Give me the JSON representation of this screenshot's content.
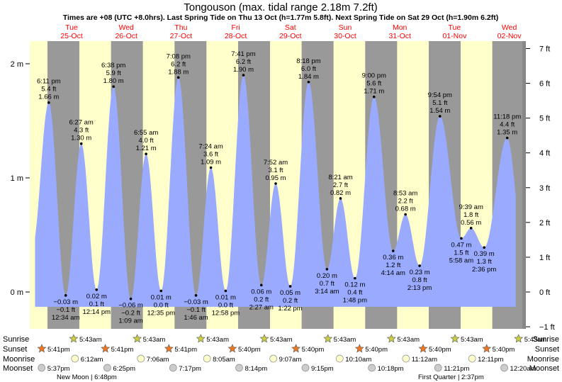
{
  "title": "Tongouson (max. tidal range 2.18m 7.2ft)",
  "subtitle": "Times are +08 (UTC +8.0hrs). Last Spring Tide on Thu 13 Oct (h=1.77m 5.8ft). Next Spring Tide on Sat 29 Oct (h=1.90m 6.2ft)",
  "colors": {
    "day": "#ffffcc",
    "night": "#999999",
    "tide": "#99aaff",
    "day_label": "#ff0000",
    "sun_marker": "#cccc44",
    "sunset_marker": "#ee7722",
    "moon_marker": "#ffffcc",
    "moonset_marker": "#cccccc"
  },
  "days": [
    {
      "dow": "Tue",
      "date": "25-Oct"
    },
    {
      "dow": "Wed",
      "date": "26-Oct"
    },
    {
      "dow": "Thu",
      "date": "27-Oct"
    },
    {
      "dow": "Fri",
      "date": "28-Oct"
    },
    {
      "dow": "Sat",
      "date": "29-Oct"
    },
    {
      "dow": "Sun",
      "date": "30-Oct"
    },
    {
      "dow": "Mon",
      "date": "31-Oct"
    },
    {
      "dow": "Tue",
      "date": "01-Nov"
    },
    {
      "dow": "Wed",
      "date": "02-Nov"
    }
  ],
  "row_labels": [
    "Sunrise",
    "Sunset",
    "Moonrise",
    "Moonset"
  ],
  "chart_data": {
    "type": "area",
    "x_unit": "hours from 25-Oct 00:00 (+08)",
    "x_range": [
      11,
      197
    ],
    "ylim_m": [
      -0.28,
      2.22
    ],
    "ylim_ft": [
      -1,
      7
    ],
    "left_ticks": [
      {
        "v": 0,
        "label": "0 m"
      },
      {
        "v": 1,
        "label": "1 m"
      },
      {
        "v": 2,
        "label": "2 m"
      }
    ],
    "right_ticks": [
      {
        "v": -1,
        "label": "−1 ft"
      },
      {
        "v": 0,
        "label": "0 ft"
      },
      {
        "v": 1,
        "label": "1 ft"
      },
      {
        "v": 2,
        "label": "2 ft"
      },
      {
        "v": 3,
        "label": "3 ft"
      },
      {
        "v": 4,
        "label": "4 ft"
      },
      {
        "v": 5,
        "label": "5 ft"
      },
      {
        "v": 6,
        "label": "6 ft"
      },
      {
        "v": 7,
        "label": "7 ft"
      }
    ],
    "tides": [
      {
        "t": 18.18,
        "h": 1.66,
        "kind": "high",
        "time": "6:11 pm",
        "ft": "5.4 ft",
        "m": "1.66 m"
      },
      {
        "t": 24.57,
        "h": -0.03,
        "kind": "low",
        "time": "12:34 am",
        "ft": "−0.1 ft",
        "m": "−0.03 m"
      },
      {
        "t": 30.45,
        "h": 1.3,
        "kind": "high",
        "time": "6:27 am",
        "ft": "4.3 ft",
        "m": "1.30 m"
      },
      {
        "t": 36.23,
        "h": 0.02,
        "kind": "low",
        "time": "12:14 pm",
        "ft": "0.1 ft",
        "m": "0.02 m"
      },
      {
        "t": 42.63,
        "h": 1.8,
        "kind": "high",
        "time": "6:38 pm",
        "ft": "5.9 ft",
        "m": "1.80 m"
      },
      {
        "t": 49.15,
        "h": -0.06,
        "kind": "low",
        "time": "1:09 am",
        "ft": "−0.2 ft",
        "m": "−0.06 m"
      },
      {
        "t": 54.92,
        "h": 1.21,
        "kind": "high",
        "time": "6:55 am",
        "ft": "4.0 ft",
        "m": "1.21 m"
      },
      {
        "t": 60.58,
        "h": 0.01,
        "kind": "low",
        "time": "12:35 pm",
        "ft": "0.0 ft",
        "m": "0.01 m"
      },
      {
        "t": 67.13,
        "h": 1.88,
        "kind": "high",
        "time": "7:08 pm",
        "ft": "6.2 ft",
        "m": "1.88 m"
      },
      {
        "t": 73.77,
        "h": -0.03,
        "kind": "low",
        "time": "1:46 am",
        "ft": "−0.1 ft",
        "m": "−0.03 m"
      },
      {
        "t": 79.4,
        "h": 1.09,
        "kind": "high",
        "time": "7:24 am",
        "ft": "3.6 ft",
        "m": "1.09 m"
      },
      {
        "t": 84.97,
        "h": 0.01,
        "kind": "low",
        "time": "12:58 pm",
        "ft": "0.0 ft",
        "m": "0.01 m"
      },
      {
        "t": 91.68,
        "h": 1.9,
        "kind": "high",
        "time": "7:41 pm",
        "ft": "6.2 ft",
        "m": "1.90 m"
      },
      {
        "t": 98.45,
        "h": 0.06,
        "kind": "low",
        "time": "2:27 am",
        "ft": "0.2 ft",
        "m": "0.06 m"
      },
      {
        "t": 103.87,
        "h": 0.95,
        "kind": "high",
        "time": "7:52 am",
        "ft": "3.1 ft",
        "m": "0.95 m"
      },
      {
        "t": 109.37,
        "h": 0.05,
        "kind": "low",
        "time": "1:22 pm",
        "ft": "0.2 ft",
        "m": "0.05 m"
      },
      {
        "t": 116.3,
        "h": 1.84,
        "kind": "high",
        "time": "8:18 pm",
        "ft": "6.0 ft",
        "m": "1.84 m"
      },
      {
        "t": 123.23,
        "h": 0.2,
        "kind": "low",
        "time": "3:14 am",
        "ft": "0.7 ft",
        "m": "0.20 m"
      },
      {
        "t": 128.35,
        "h": 0.82,
        "kind": "high",
        "time": "8:21 am",
        "ft": "2.7 ft",
        "m": "0.82 m"
      },
      {
        "t": 133.8,
        "h": 0.12,
        "kind": "low",
        "time": "1:48 pm",
        "ft": "0.4 ft",
        "m": "0.12 m"
      },
      {
        "t": 141.0,
        "h": 1.71,
        "kind": "high",
        "time": "9:00 pm",
        "ft": "5.6 ft",
        "m": "1.71 m"
      },
      {
        "t": 148.23,
        "h": 0.36,
        "kind": "low",
        "time": "4:14 am",
        "ft": "1.2 ft",
        "m": "0.36 m"
      },
      {
        "t": 152.88,
        "h": 0.68,
        "kind": "high",
        "time": "8:53 am",
        "ft": "2.2 ft",
        "m": "0.68 m"
      },
      {
        "t": 158.22,
        "h": 0.23,
        "kind": "low",
        "time": "2:13 pm",
        "ft": "0.8 ft",
        "m": "0.23 m"
      },
      {
        "t": 165.9,
        "h": 1.54,
        "kind": "high",
        "time": "9:54 pm",
        "ft": "5.1 ft",
        "m": "1.54 m"
      },
      {
        "t": 173.97,
        "h": 0.47,
        "kind": "low",
        "time": "5:58 am",
        "ft": "1.5 ft",
        "m": "0.47 m"
      },
      {
        "t": 177.65,
        "h": 0.56,
        "kind": "high",
        "time": "9:39 am",
        "ft": "1.8 ft",
        "m": "0.56 m"
      },
      {
        "t": 182.6,
        "h": 0.39,
        "kind": "low",
        "time": "2:36 pm",
        "ft": "1.3 ft",
        "m": "0.39 m"
      },
      {
        "t": 191.3,
        "h": 1.35,
        "kind": "high",
        "time": "11:18 pm",
        "ft": "4.4 ft",
        "m": "1.35 m"
      }
    ],
    "sunrise": [
      {
        "t": 29.72,
        "label": "5:43am"
      },
      {
        "t": 53.72,
        "label": "5:43am"
      },
      {
        "t": 77.72,
        "label": "5:43am"
      },
      {
        "t": 101.72,
        "label": "5:43am"
      },
      {
        "t": 125.72,
        "label": "5:43am"
      },
      {
        "t": 149.72,
        "label": "5:43am"
      },
      {
        "t": 173.72,
        "label": "5:43am"
      },
      {
        "t": 197.72,
        "label": "5:43am"
      }
    ],
    "sunset": [
      {
        "t": 17.68,
        "label": "5:41pm"
      },
      {
        "t": 41.68,
        "label": "5:41pm"
      },
      {
        "t": 65.68,
        "label": "5:41pm"
      },
      {
        "t": 89.67,
        "label": "5:40pm"
      },
      {
        "t": 113.67,
        "label": "5:40pm"
      },
      {
        "t": 137.67,
        "label": "5:40pm"
      },
      {
        "t": 161.67,
        "label": "5:40pm"
      },
      {
        "t": 185.67,
        "label": "5:40pm"
      }
    ],
    "moonrise": [
      {
        "t": 30.2,
        "label": "6:12am"
      },
      {
        "t": 55.1,
        "label": "7:06am"
      },
      {
        "t": 80.08,
        "label": "8:05am"
      },
      {
        "t": 105.12,
        "label": "9:07am"
      },
      {
        "t": 130.17,
        "label": "10:10am"
      },
      {
        "t": 155.2,
        "label": "11:12am"
      },
      {
        "t": 180.18,
        "label": "12:11pm"
      }
    ],
    "moonset": [
      {
        "t": 17.62,
        "label": "5:37pm"
      },
      {
        "t": 42.42,
        "label": "6:25pm"
      },
      {
        "t": 67.28,
        "label": "7:17pm"
      },
      {
        "t": 92.23,
        "label": "8:14pm"
      },
      {
        "t": 117.25,
        "label": "9:15pm"
      },
      {
        "t": 142.3,
        "label": "10:18pm"
      },
      {
        "t": 167.35,
        "label": "11:21pm"
      },
      {
        "t": 192.33,
        "label": "12:20am"
      }
    ],
    "moon_phases": [
      {
        "label": "New Moon | 6:48pm"
      },
      {
        "label": "First Quarter | 2:37pm"
      }
    ]
  }
}
